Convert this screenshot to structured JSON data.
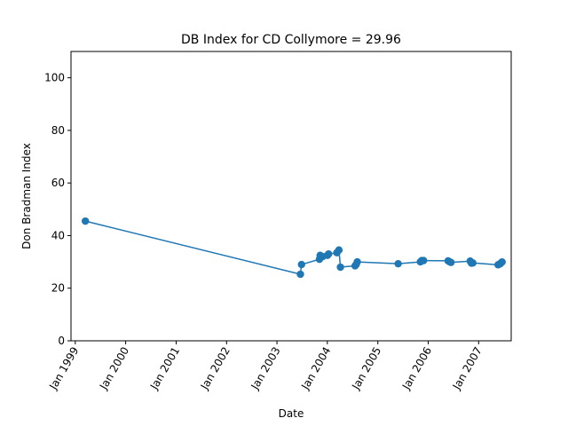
{
  "chart_data": {
    "type": "line",
    "title": "DB Index for CD Collymore = 29.96",
    "xlabel": "Date",
    "ylabel": "Don Bradman Index",
    "ylim": [
      0,
      110
    ],
    "xlim": [
      "1998-12-01",
      "2007-08-25"
    ],
    "yticks": [
      0,
      20,
      40,
      60,
      80,
      100
    ],
    "xticks": [
      {
        "date": "1999-01-01",
        "label": "Jan 1999"
      },
      {
        "date": "2000-01-01",
        "label": "Jan 2000"
      },
      {
        "date": "2001-01-01",
        "label": "Jan 2001"
      },
      {
        "date": "2002-01-01",
        "label": "Jan 2002"
      },
      {
        "date": "2003-01-01",
        "label": "Jan 2003"
      },
      {
        "date": "2004-01-01",
        "label": "Jan 2004"
      },
      {
        "date": "2005-01-01",
        "label": "Jan 2005"
      },
      {
        "date": "2006-01-01",
        "label": "Jan 2006"
      },
      {
        "date": "2007-01-01",
        "label": "Jan 2007"
      }
    ],
    "grid": false,
    "color": "#1f77b4",
    "series": [
      {
        "points": [
          {
            "x": "1999-03-15",
            "y": 45.5
          },
          {
            "x": "2003-06-20",
            "y": 25.3
          },
          {
            "x": "2003-06-28",
            "y": 29.0
          },
          {
            "x": "2003-11-05",
            "y": 31.0
          },
          {
            "x": "2003-11-10",
            "y": 32.5
          },
          {
            "x": "2003-11-28",
            "y": 32.0
          },
          {
            "x": "2004-01-02",
            "y": 32.5
          },
          {
            "x": "2004-01-10",
            "y": 33.0
          },
          {
            "x": "2004-03-10",
            "y": 33.5
          },
          {
            "x": "2004-03-25",
            "y": 34.5
          },
          {
            "x": "2004-04-05",
            "y": 28.0
          },
          {
            "x": "2004-07-20",
            "y": 28.5
          },
          {
            "x": "2004-07-28",
            "y": 29.0
          },
          {
            "x": "2004-08-05",
            "y": 30.0
          },
          {
            "x": "2005-05-28",
            "y": 29.3
          },
          {
            "x": "2005-11-05",
            "y": 30.0
          },
          {
            "x": "2005-11-15",
            "y": 30.5
          },
          {
            "x": "2005-11-28",
            "y": 30.5
          },
          {
            "x": "2006-05-25",
            "y": 30.4
          },
          {
            "x": "2006-06-05",
            "y": 30.0
          },
          {
            "x": "2006-06-15",
            "y": 29.8
          },
          {
            "x": "2006-11-01",
            "y": 30.3
          },
          {
            "x": "2006-11-10",
            "y": 29.5
          },
          {
            "x": "2006-11-20",
            "y": 29.6
          },
          {
            "x": "2007-05-22",
            "y": 28.9
          },
          {
            "x": "2007-06-05",
            "y": 29.2
          },
          {
            "x": "2007-06-12",
            "y": 29.6
          },
          {
            "x": "2007-06-20",
            "y": 29.96
          }
        ]
      }
    ]
  }
}
